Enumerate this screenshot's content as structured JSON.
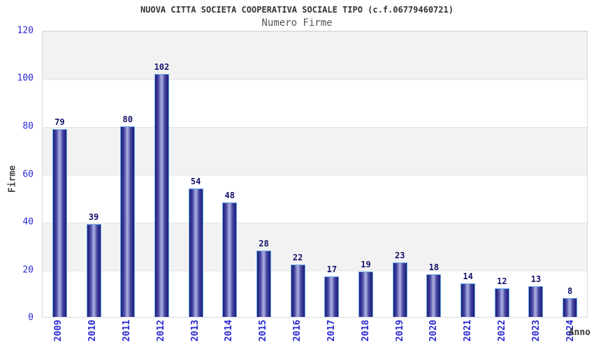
{
  "chart_data": {
    "type": "bar",
    "title": "NUOVA CITTA SOCIETA COOPERATIVA SOCIALE TIPO (c.f.06779460721)",
    "subtitle": "Numero Firme",
    "xlabel": "Anno",
    "ylabel": "Firme",
    "categories": [
      "2009",
      "2010",
      "2011",
      "2012",
      "2013",
      "2014",
      "2015",
      "2016",
      "2017",
      "2018",
      "2019",
      "2020",
      "2021",
      "2022",
      "2023",
      "2024"
    ],
    "values": [
      79,
      39,
      80,
      102,
      54,
      48,
      28,
      22,
      17,
      19,
      23,
      18,
      14,
      12,
      13,
      8
    ],
    "ylim": [
      0,
      120
    ],
    "yticks": [
      0,
      20,
      40,
      60,
      80,
      100,
      120
    ],
    "grid": "horizontal-bands",
    "legend": "none",
    "colors": {
      "title": "#333333",
      "subtitle": "#555555",
      "axis_tick_label": "#2a2ad2",
      "value_label": "#13136b",
      "axis_title": "#444444",
      "bar_dark": "#1b1b76",
      "bar_mid": "#4646a4",
      "bar_light": "#a8a8dc",
      "bar_border": "#68ace8",
      "band_gray": "#f2f2f2",
      "band_white": "#ffffff",
      "grid_line": "#e3e3e3",
      "plot_border": "#d9d9d9"
    }
  }
}
